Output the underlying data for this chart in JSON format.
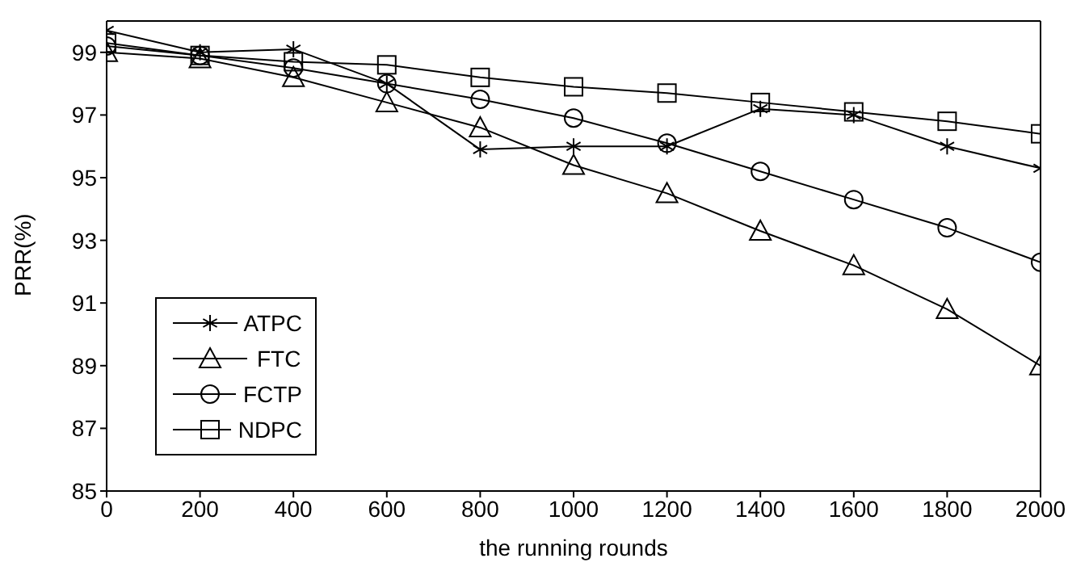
{
  "chart_data": {
    "type": "line",
    "xlabel": "the running rounds",
    "ylabel": "PRR(%)",
    "x": [
      0,
      200,
      400,
      600,
      800,
      1000,
      1200,
      1400,
      1600,
      1800,
      2000
    ],
    "xlim": [
      0,
      2000
    ],
    "xticks": [
      0,
      200,
      400,
      600,
      800,
      1000,
      1200,
      1400,
      1600,
      1800,
      2000
    ],
    "ylim": [
      85,
      100
    ],
    "yticks": [
      85,
      87,
      89,
      91,
      93,
      95,
      97,
      99
    ],
    "grid": false,
    "legend": "bottom left",
    "line_style": "solid",
    "series": [
      {
        "name": "ATPC",
        "color": "#000000",
        "marker": "cross",
        "values": [
          99.7,
          99.0,
          99.1,
          98.0,
          95.9,
          96.0,
          96.0,
          97.2,
          97.0,
          96.0,
          95.3
        ]
      },
      {
        "name": "FTC",
        "color": "#000000",
        "marker": "triangle",
        "values": [
          99.0,
          98.8,
          98.2,
          97.4,
          96.6,
          95.4,
          94.5,
          93.3,
          92.2,
          90.8,
          89.0
        ]
      },
      {
        "name": "FCTP",
        "color": "#000000",
        "marker": "circle",
        "values": [
          99.2,
          98.9,
          98.5,
          98.0,
          97.5,
          96.9,
          96.1,
          95.2,
          94.3,
          93.4,
          92.3
        ]
      },
      {
        "name": "NDPC",
        "color": "#000000",
        "marker": "square",
        "values": [
          99.3,
          98.9,
          98.7,
          98.6,
          98.2,
          97.9,
          97.7,
          97.4,
          97.1,
          96.8,
          96.4
        ]
      }
    ]
  }
}
